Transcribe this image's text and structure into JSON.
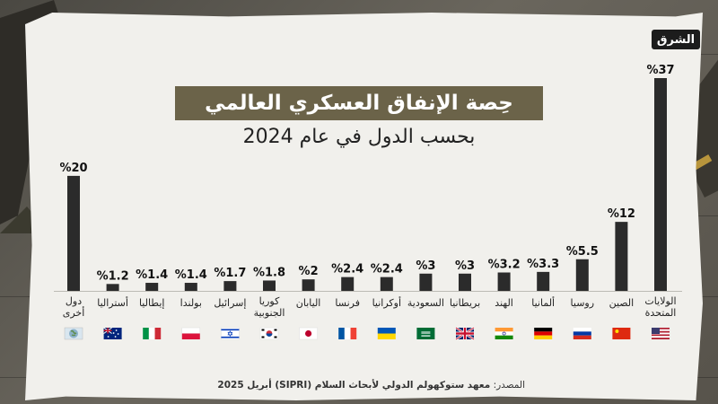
{
  "logo": {
    "text": "الشرق"
  },
  "chart_data": {
    "type": "bar",
    "title": "حِصة الإنفاق العسكري العالمي",
    "subtitle": "بحسب الدول في عام 2024",
    "ylim": [
      0,
      37
    ],
    "grid": false,
    "categories": [
      "الولايات المتحدة",
      "الصين",
      "روسيا",
      "ألمانيا",
      "الهند",
      "بريطانيا",
      "السعودية",
      "أوكرانيا",
      "فرنسا",
      "اليابان",
      "كوريا الجنوبية",
      "إسرائيل",
      "بولندا",
      "إيطاليا",
      "أستراليا",
      "دول أخرى"
    ],
    "values": [
      37,
      12,
      5.5,
      3.3,
      3.2,
      3,
      3,
      2.4,
      2.4,
      2,
      1.8,
      1.7,
      1.4,
      1.4,
      1.2,
      20
    ],
    "value_labels": [
      "%37",
      "%12",
      "%5.5",
      "%3.3",
      "%3.2",
      "%3",
      "%3",
      "%2.4",
      "%2.4",
      "%2",
      "%1.8",
      "%1.7",
      "%1.4",
      "%1.4",
      "%1.2",
      "%20"
    ],
    "bar_color": "#2b2b2b",
    "flags": [
      "us",
      "cn",
      "ru",
      "de",
      "in",
      "gb",
      "sa",
      "ua",
      "fr",
      "jp",
      "kr",
      "il",
      "pl",
      "it",
      "au",
      "other"
    ]
  },
  "source": {
    "label": "المصدر:",
    "text": "معهد ستوكهولم الدولي لأبحاث السلام (SIPRI) أبريل 2025"
  },
  "colors": {
    "title_bg": "#6b6349",
    "paper": "#f1f0ec"
  }
}
